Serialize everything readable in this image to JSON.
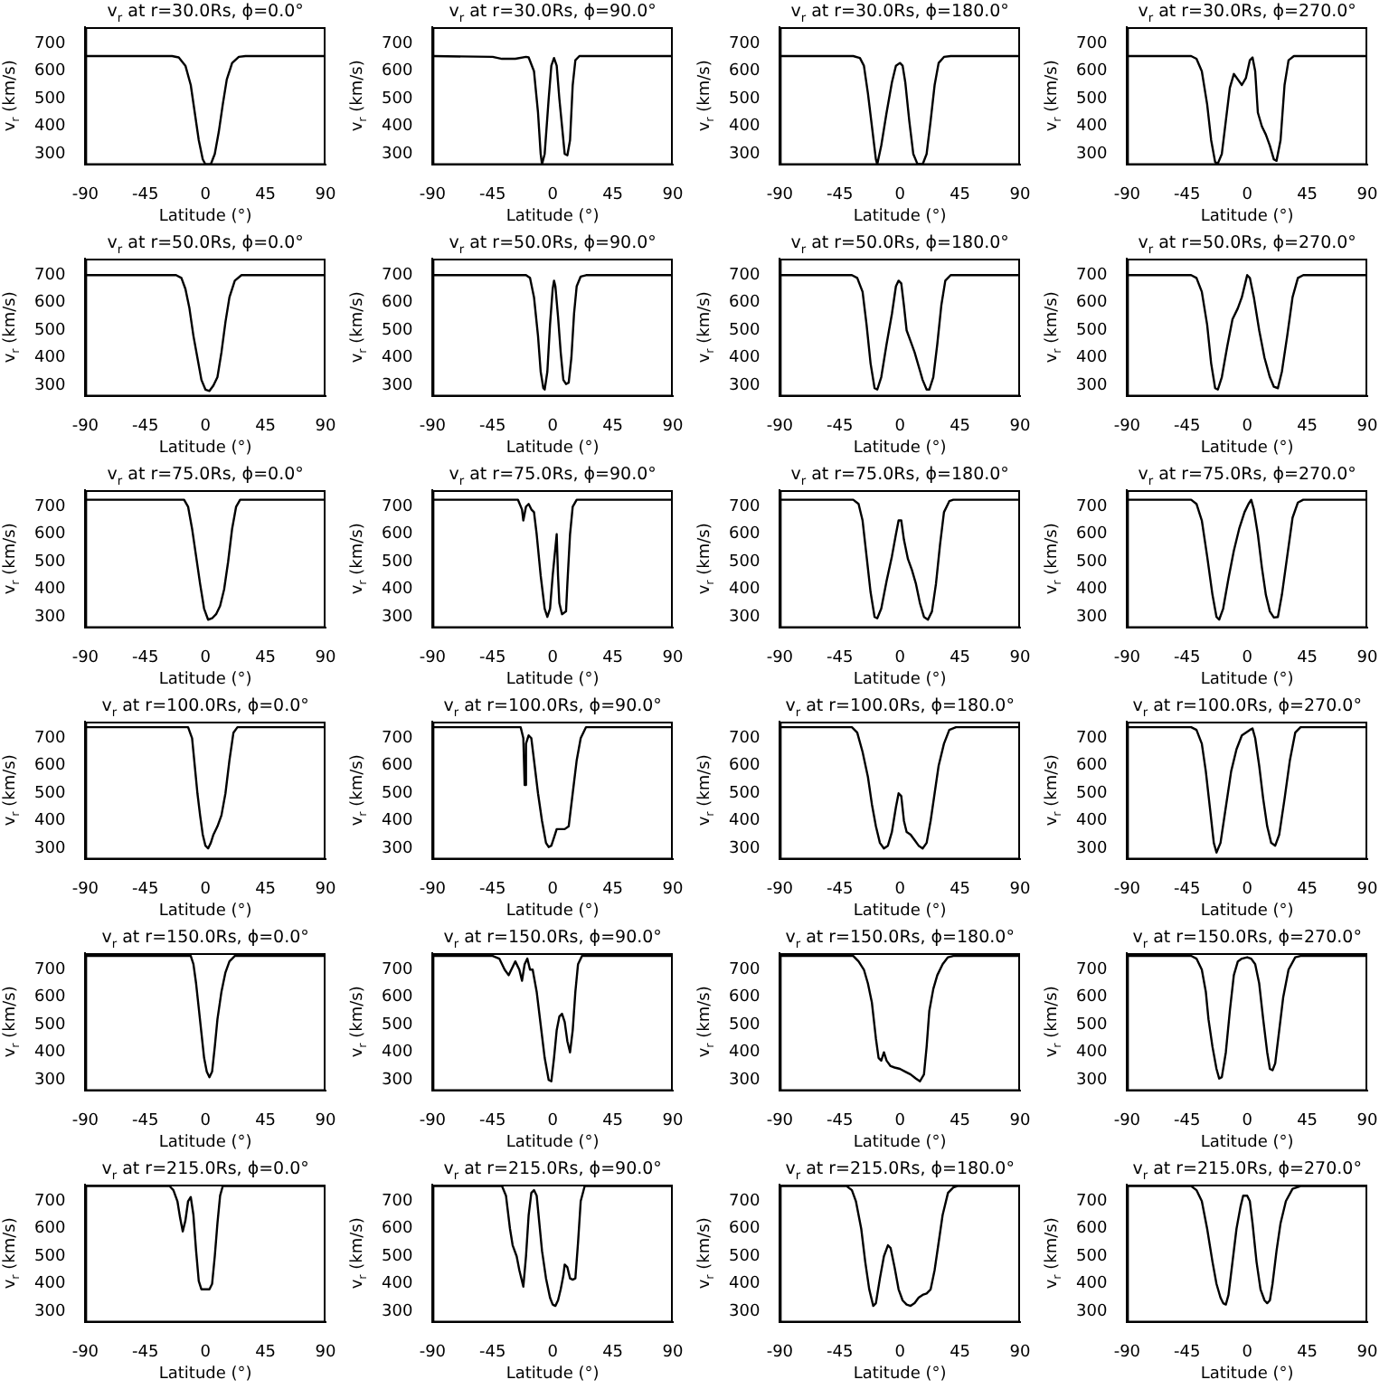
{
  "chart_data": [
    {
      "type": "line",
      "title": "v$_{r}$ at r=30.0Rs, ϕ=0.0°",
      "xlabel": "Latitude (°)",
      "ylabel": "v$_{r}$ (km/s)",
      "color": "#000000",
      "xlim": [
        -90,
        90
      ],
      "xticks": [
        -90,
        -45,
        0,
        45,
        90
      ],
      "ylim": [
        260,
        760
      ],
      "yticks": [
        300,
        400,
        500,
        600,
        700
      ],
      "x": [
        -90,
        -25,
        -20,
        -15,
        -11,
        -8,
        -5,
        -2,
        0,
        4,
        7,
        10,
        13,
        16,
        20,
        25,
        30,
        90
      ],
      "values": [
        655,
        655,
        650,
        620,
        550,
        450,
        350,
        280,
        262,
        262,
        300,
        380,
        480,
        570,
        630,
        652,
        655,
        655
      ]
    },
    {
      "type": "line",
      "title": "v$_{r}$ at r=30.0Rs, ϕ=90.0°",
      "xlabel": "Latitude (°)",
      "ylabel": "v$_{r}$ (km/s)",
      "color": "#000000",
      "xlim": [
        -90,
        90
      ],
      "xticks": [
        -90,
        -45,
        0,
        45,
        90
      ],
      "ylim": [
        260,
        760
      ],
      "yticks": [
        300,
        400,
        500,
        600,
        700
      ],
      "x": [
        -90,
        -45,
        -38,
        -28,
        -20,
        -18,
        -14,
        -11,
        -9,
        -8,
        -6,
        -3,
        -1,
        1,
        3,
        5,
        7,
        9,
        11,
        13,
        15,
        17,
        20,
        90
      ],
      "values": [
        655,
        652,
        645,
        645,
        652,
        650,
        600,
        450,
        300,
        262,
        300,
        500,
        620,
        648,
        620,
        500,
        400,
        300,
        295,
        350,
        550,
        640,
        655,
        655
      ]
    },
    {
      "type": "line",
      "title": "v$_{r}$ at r=30.0Rs, ϕ=180.0°",
      "xlabel": "Latitude (°)",
      "ylabel": "v$_{r}$ (km/s)",
      "color": "#000000",
      "xlim": [
        -90,
        90
      ],
      "xticks": [
        -90,
        -45,
        0,
        45,
        90
      ],
      "ylim": [
        260,
        760
      ],
      "yticks": [
        300,
        400,
        500,
        600,
        700
      ],
      "x": [
        -90,
        -35,
        -30,
        -27,
        -24,
        -21,
        -18,
        -17,
        -14,
        -10,
        -6,
        -3,
        0,
        2,
        4,
        7,
        10,
        13,
        17,
        20,
        23,
        26,
        29,
        33,
        38,
        90
      ],
      "values": [
        655,
        655,
        648,
        620,
        520,
        400,
        280,
        262,
        330,
        450,
        560,
        620,
        630,
        620,
        560,
        420,
        300,
        265,
        262,
        300,
        420,
        550,
        630,
        652,
        655,
        655
      ]
    },
    {
      "type": "line",
      "title": "v$_{r}$ at r=30.0Rs, ϕ=270.0°",
      "xlabel": "Latitude (°)",
      "ylabel": "v$_{r}$ (km/s)",
      "color": "#000000",
      "xlim": [
        -90,
        90
      ],
      "xticks": [
        -90,
        -45,
        0,
        45,
        90
      ],
      "ylim": [
        260,
        760
      ],
      "yticks": [
        300,
        400,
        500,
        600,
        700
      ],
      "x": [
        -90,
        -42,
        -38,
        -34,
        -30,
        -27,
        -24,
        -22,
        -19,
        -16,
        -13,
        -10,
        -7,
        -4,
        -1,
        2,
        4,
        6,
        8,
        11,
        14,
        17,
        20,
        22,
        25,
        28,
        31,
        35,
        90
      ],
      "values": [
        655,
        655,
        645,
        600,
        480,
        350,
        270,
        265,
        300,
        420,
        540,
        590,
        570,
        550,
        575,
        640,
        650,
        600,
        450,
        400,
        370,
        330,
        280,
        275,
        350,
        550,
        640,
        655,
        655
      ]
    },
    {
      "type": "line",
      "title": "v$_{r}$ at r=50.0Rs, ϕ=0.0°",
      "xlabel": "Latitude (°)",
      "ylabel": "v$_{r}$ (km/s)",
      "color": "#000000",
      "xlim": [
        -90,
        90
      ],
      "xticks": [
        -90,
        -45,
        0,
        45,
        90
      ],
      "ylim": [
        260,
        760
      ],
      "yticks": [
        300,
        400,
        500,
        600,
        700
      ],
      "x": [
        -90,
        -22,
        -18,
        -15,
        -12,
        -9,
        -6,
        -3,
        0,
        3,
        6,
        9,
        12,
        15,
        18,
        22,
        27,
        90
      ],
      "values": [
        700,
        700,
        690,
        650,
        580,
        480,
        400,
        320,
        285,
        280,
        300,
        330,
        420,
        530,
        620,
        680,
        700,
        700
      ]
    },
    {
      "type": "line",
      "title": "v$_{r}$ at r=50.0Rs, ϕ=90.0°",
      "xlabel": "Latitude (°)",
      "ylabel": "v$_{r}$ (km/s)",
      "color": "#000000",
      "xlim": [
        -90,
        90
      ],
      "xticks": [
        -90,
        -45,
        0,
        45,
        90
      ],
      "ylim": [
        260,
        760
      ],
      "yticks": [
        300,
        400,
        500,
        600,
        700
      ],
      "x": [
        -90,
        -20,
        -17,
        -14,
        -11,
        -9,
        -7,
        -6,
        -4,
        -2,
        0,
        1,
        2,
        4,
        6,
        8,
        10,
        12,
        14,
        16,
        18,
        21,
        25,
        90
      ],
      "values": [
        700,
        700,
        690,
        620,
        480,
        350,
        290,
        285,
        350,
        520,
        650,
        680,
        660,
        550,
        420,
        320,
        305,
        310,
        400,
        560,
        660,
        695,
        700,
        700
      ]
    },
    {
      "type": "line",
      "title": "v$_{r}$ at r=50.0Rs, ϕ=180.0°",
      "xlabel": "Latitude (°)",
      "ylabel": "v$_{r}$ (km/s)",
      "color": "#000000",
      "xlim": [
        -90,
        90
      ],
      "xticks": [
        -90,
        -45,
        0,
        45,
        90
      ],
      "ylim": [
        260,
        760
      ],
      "yticks": [
        300,
        400,
        500,
        600,
        700
      ],
      "x": [
        -90,
        -36,
        -32,
        -28,
        -25,
        -22,
        -19,
        -17,
        -14,
        -10,
        -6,
        -3,
        -1,
        1,
        3,
        5,
        8,
        11,
        14,
        17,
        20,
        22,
        25,
        28,
        31,
        34,
        38,
        90
      ],
      "values": [
        700,
        700,
        690,
        640,
        520,
        380,
        290,
        285,
        330,
        450,
        560,
        660,
        680,
        670,
        590,
        500,
        460,
        420,
        370,
        320,
        285,
        285,
        330,
        450,
        590,
        680,
        700,
        700
      ]
    },
    {
      "type": "line",
      "title": "v$_{r}$ at r=50.0Rs, ϕ=270.0°",
      "xlabel": "Latitude (°)",
      "ylabel": "v$_{r}$ (km/s)",
      "color": "#000000",
      "xlim": [
        -90,
        90
      ],
      "xticks": [
        -90,
        -45,
        0,
        45,
        90
      ],
      "ylim": [
        260,
        760
      ],
      "yticks": [
        300,
        400,
        500,
        600,
        700
      ],
      "x": [
        -90,
        -42,
        -38,
        -34,
        -30,
        -27,
        -24,
        -22,
        -19,
        -15,
        -11,
        -7,
        -4,
        -1,
        0,
        2,
        5,
        9,
        13,
        17,
        20,
        23,
        26,
        30,
        34,
        38,
        42,
        90
      ],
      "values": [
        700,
        700,
        690,
        640,
        520,
        380,
        290,
        285,
        330,
        440,
        540,
        580,
        620,
        680,
        700,
        690,
        620,
        500,
        400,
        330,
        295,
        290,
        350,
        480,
        620,
        690,
        700,
        700
      ]
    },
    {
      "type": "line",
      "title": "v$_{r}$ at r=75.0Rs, ϕ=0.0°",
      "xlabel": "Latitude (°)",
      "ylabel": "v$_{r}$ (km/s)",
      "color": "#000000",
      "xlim": [
        -90,
        90
      ],
      "xticks": [
        -90,
        -45,
        0,
        45,
        90
      ],
      "ylim": [
        260,
        760
      ],
      "yticks": [
        300,
        400,
        500,
        600,
        700
      ],
      "x": [
        -90,
        -16,
        -13,
        -10,
        -7,
        -4,
        -1,
        2,
        5,
        8,
        11,
        14,
        17,
        20,
        23,
        26,
        90
      ],
      "values": [
        725,
        725,
        700,
        620,
        520,
        420,
        330,
        290,
        295,
        310,
        340,
        400,
        500,
        620,
        700,
        725,
        725
      ]
    },
    {
      "type": "line",
      "title": "v$_{r}$ at r=75.0Rs, ϕ=90.0°",
      "xlabel": "Latitude (°)",
      "ylabel": "v$_{r}$ (km/s)",
      "color": "#000000",
      "xlim": [
        -90,
        90
      ],
      "xticks": [
        -90,
        -45,
        0,
        45,
        90
      ],
      "ylim": [
        260,
        760
      ],
      "yticks": [
        300,
        400,
        500,
        600,
        700
      ],
      "x": [
        -90,
        -26,
        -23,
        -22,
        -20,
        -18,
        -16,
        -14,
        -12,
        -9,
        -6,
        -4,
        -2,
        0,
        1,
        3,
        4,
        5,
        7,
        10,
        11,
        13,
        15,
        18,
        90
      ],
      "values": [
        725,
        725,
        690,
        650,
        700,
        710,
        690,
        680,
        600,
        450,
        330,
        300,
        330,
        450,
        500,
        600,
        450,
        350,
        310,
        320,
        420,
        600,
        700,
        725,
        725
      ]
    },
    {
      "type": "line",
      "title": "v$_{r}$ at r=75.0Rs, ϕ=180.0°",
      "xlabel": "Latitude (°)",
      "ylabel": "v$_{r}$ (km/s)",
      "color": "#000000",
      "xlim": [
        -90,
        90
      ],
      "xticks": [
        -90,
        -45,
        0,
        45,
        90
      ],
      "ylim": [
        260,
        760
      ],
      "yticks": [
        300,
        400,
        500,
        600,
        700
      ],
      "x": [
        -90,
        -35,
        -31,
        -28,
        -25,
        -22,
        -19,
        -17,
        -14,
        -10,
        -6,
        -3,
        -1,
        1,
        3,
        6,
        9,
        12,
        15,
        18,
        21,
        24,
        27,
        30,
        33,
        37,
        40,
        90
      ],
      "values": [
        725,
        725,
        710,
        650,
        520,
        390,
        300,
        295,
        330,
        430,
        520,
        600,
        650,
        650,
        580,
        510,
        470,
        420,
        350,
        300,
        290,
        320,
        420,
        560,
        680,
        720,
        725,
        725
      ]
    },
    {
      "type": "line",
      "title": "v$_{r}$ at r=75.0Rs, ϕ=270.0°",
      "xlabel": "Latitude (°)",
      "ylabel": "v$_{r}$ (km/s)",
      "color": "#000000",
      "xlim": [
        -90,
        90
      ],
      "xticks": [
        -90,
        -45,
        0,
        45,
        90
      ],
      "ylim": [
        260,
        760
      ],
      "yticks": [
        300,
        400,
        500,
        600,
        700
      ],
      "x": [
        -90,
        -42,
        -38,
        -34,
        -30,
        -26,
        -23,
        -21,
        -18,
        -14,
        -10,
        -6,
        -2,
        1,
        3,
        5,
        8,
        11,
        14,
        17,
        20,
        23,
        26,
        30,
        34,
        38,
        42,
        90
      ],
      "values": [
        725,
        725,
        710,
        650,
        520,
        380,
        300,
        290,
        330,
        440,
        540,
        620,
        680,
        710,
        725,
        690,
        600,
        480,
        380,
        320,
        298,
        300,
        380,
        520,
        660,
        715,
        725,
        725
      ]
    },
    {
      "type": "line",
      "title": "v$_{r}$ at r=100.0Rs, ϕ=0.0°",
      "xlabel": "Latitude (°)",
      "ylabel": "v$_{r}$ (km/s)",
      "color": "#000000",
      "xlim": [
        -90,
        90
      ],
      "xticks": [
        -90,
        -45,
        0,
        45,
        90
      ],
      "ylim": [
        260,
        760
      ],
      "yticks": [
        300,
        400,
        500,
        600,
        700
      ],
      "x": [
        -90,
        -13,
        -10,
        -8,
        -6,
        -4,
        -2,
        0,
        2,
        4,
        6,
        9,
        12,
        15,
        18,
        21,
        24,
        90
      ],
      "values": [
        740,
        740,
        700,
        600,
        500,
        420,
        350,
        310,
        300,
        320,
        350,
        380,
        420,
        500,
        620,
        720,
        740,
        740
      ]
    },
    {
      "type": "line",
      "title": "v$_{r}$ at r=100.0Rs, ϕ=90.0°",
      "xlabel": "Latitude (°)",
      "ylabel": "v$_{r}$ (km/s)",
      "color": "#000000",
      "xlim": [
        -90,
        90
      ],
      "xticks": [
        -90,
        -45,
        0,
        45,
        90
      ],
      "ylim": [
        260,
        760
      ],
      "yticks": [
        300,
        400,
        500,
        600,
        700
      ],
      "x": [
        -90,
        -24,
        -22,
        -21,
        -20,
        -18,
        -16,
        -14,
        -11,
        -8,
        -5,
        -3,
        -1,
        1,
        3,
        6,
        9,
        12,
        15,
        18,
        21,
        25,
        90
      ],
      "values": [
        740,
        740,
        700,
        530,
        680,
        710,
        700,
        620,
        500,
        400,
        320,
        305,
        310,
        340,
        370,
        370,
        370,
        380,
        500,
        620,
        700,
        740,
        740
      ]
    },
    {
      "type": "line",
      "title": "v$_{r}$ at r=100.0Rs, ϕ=180.0°",
      "xlabel": "Latitude (°)",
      "ylabel": "v$_{r}$ (km/s)",
      "color": "#000000",
      "xlim": [
        -90,
        90
      ],
      "xticks": [
        -90,
        -45,
        0,
        45,
        90
      ],
      "ylim": [
        260,
        760
      ],
      "yticks": [
        300,
        400,
        500,
        600,
        700
      ],
      "x": [
        -90,
        -36,
        -32,
        -28,
        -24,
        -21,
        -18,
        -15,
        -12,
        -9,
        -6,
        -3,
        -1,
        1,
        3,
        5,
        8,
        11,
        14,
        17,
        20,
        23,
        26,
        29,
        33,
        37,
        42,
        90
      ],
      "values": [
        740,
        740,
        720,
        650,
        560,
        460,
        380,
        320,
        300,
        310,
        360,
        450,
        500,
        490,
        400,
        360,
        350,
        330,
        310,
        300,
        320,
        400,
        500,
        600,
        680,
        730,
        740,
        740
      ]
    },
    {
      "type": "line",
      "title": "v$_{r}$ at r=100.0Rs, ϕ=270.0°",
      "xlabel": "Latitude (°)",
      "ylabel": "v$_{r}$ (km/s)",
      "color": "#000000",
      "xlim": [
        -90,
        90
      ],
      "xticks": [
        -90,
        -45,
        0,
        45,
        90
      ],
      "ylim": [
        260,
        760
      ],
      "yticks": [
        300,
        400,
        500,
        600,
        700
      ],
      "x": [
        -90,
        -42,
        -38,
        -34,
        -31,
        -28,
        -25,
        -23,
        -20,
        -16,
        -12,
        -8,
        -4,
        -1,
        2,
        4,
        6,
        9,
        12,
        15,
        18,
        21,
        24,
        28,
        32,
        36,
        40,
        90
      ],
      "values": [
        740,
        740,
        730,
        680,
        580,
        450,
        320,
        285,
        320,
        450,
        580,
        660,
        710,
        720,
        730,
        735,
        700,
        600,
        480,
        380,
        320,
        310,
        350,
        480,
        620,
        720,
        740,
        740
      ]
    },
    {
      "type": "line",
      "title": "v$_{r}$ at r=150.0Rs, ϕ=0.0°",
      "xlabel": "Latitude (°)",
      "ylabel": "v$_{r}$ (km/s)",
      "color": "#000000",
      "xlim": [
        -90,
        90
      ],
      "xticks": [
        -90,
        -45,
        0,
        45,
        90
      ],
      "ylim": [
        260,
        760
      ],
      "yticks": [
        300,
        400,
        500,
        600,
        700
      ],
      "x": [
        -90,
        -11,
        -9,
        -7,
        -5,
        -3,
        -1,
        1,
        3,
        5,
        7,
        9,
        12,
        15,
        18,
        22,
        90
      ],
      "values": [
        750,
        750,
        720,
        650,
        560,
        470,
        380,
        330,
        310,
        330,
        420,
        520,
        620,
        690,
        730,
        750,
        750
      ]
    },
    {
      "type": "line",
      "title": "v$_{r}$ at r=150.0Rs, ϕ=90.0°",
      "xlabel": "Latitude (°)",
      "ylabel": "v$_{r}$ (km/s)",
      "color": "#000000",
      "xlim": [
        -90,
        90
      ],
      "xticks": [
        -90,
        -45,
        0,
        45,
        90
      ],
      "ylim": [
        260,
        760
      ],
      "yticks": [
        300,
        400,
        500,
        600,
        700
      ],
      "x": [
        -90,
        -45,
        -40,
        -36,
        -33,
        -30,
        -28,
        -25,
        -23,
        -21,
        -19,
        -17,
        -15,
        -12,
        -9,
        -6,
        -3,
        -1,
        1,
        3,
        5,
        7,
        9,
        11,
        13,
        15,
        17,
        19,
        22,
        90
      ],
      "values": [
        750,
        750,
        740,
        700,
        680,
        710,
        730,
        700,
        660,
        720,
        740,
        700,
        700,
        620,
        500,
        380,
        300,
        295,
        380,
        480,
        530,
        540,
        510,
        440,
        400,
        480,
        620,
        720,
        750,
        750
      ]
    },
    {
      "type": "line",
      "title": "v$_{r}$ at r=150.0Rs, ϕ=180.0°",
      "xlabel": "Latitude (°)",
      "ylabel": "v$_{r}$ (km/s)",
      "color": "#000000",
      "xlim": [
        -90,
        90
      ],
      "xticks": [
        -90,
        -45,
        0,
        45,
        90
      ],
      "ylim": [
        260,
        760
      ],
      "yticks": [
        300,
        400,
        500,
        600,
        700
      ],
      "x": [
        -90,
        -35,
        -31,
        -27,
        -24,
        -21,
        -18,
        -16,
        -14,
        -12,
        -10,
        -7,
        -4,
        0,
        4,
        8,
        12,
        15,
        18,
        20,
        22,
        25,
        28,
        32,
        36,
        40,
        90
      ],
      "values": [
        750,
        750,
        730,
        700,
        650,
        580,
        450,
        380,
        370,
        400,
        370,
        350,
        345,
        340,
        330,
        320,
        305,
        295,
        320,
        420,
        550,
        630,
        680,
        720,
        745,
        750,
        750
      ]
    },
    {
      "type": "line",
      "title": "v$_{r}$ at r=150.0Rs, ϕ=270.0°",
      "xlabel": "Latitude (°)",
      "ylabel": "v$_{r}$ (km/s)",
      "color": "#000000",
      "xlim": [
        -90,
        90
      ],
      "xticks": [
        -90,
        -45,
        0,
        45,
        90
      ],
      "ylim": [
        260,
        760
      ],
      "yticks": [
        300,
        400,
        500,
        600,
        700
      ],
      "x": [
        -90,
        -42,
        -38,
        -34,
        -31,
        -29,
        -26,
        -23,
        -21,
        -19,
        -16,
        -13,
        -10,
        -7,
        -4,
        0,
        3,
        6,
        9,
        12,
        15,
        17,
        19,
        21,
        24,
        27,
        31,
        36,
        40,
        90
      ],
      "values": [
        750,
        750,
        740,
        700,
        620,
        520,
        420,
        340,
        305,
        310,
        400,
        550,
        680,
        730,
        740,
        745,
        740,
        720,
        650,
        520,
        400,
        340,
        335,
        360,
        480,
        600,
        700,
        745,
        750,
        750
      ]
    },
    {
      "type": "line",
      "title": "v$_{r}$ at r=215.0Rs, ϕ=0.0°",
      "xlabel": "Latitude (°)",
      "ylabel": "v$_{r}$ (km/s)",
      "color": "#000000",
      "xlim": [
        -90,
        90
      ],
      "xticks": [
        -90,
        -45,
        0,
        45,
        90
      ],
      "ylim": [
        260,
        760
      ],
      "yticks": [
        300,
        400,
        500,
        600,
        700
      ],
      "x": [
        -90,
        -27,
        -24,
        -21,
        -19,
        -17,
        -15,
        -13,
        -11,
        -9,
        -7,
        -5,
        -3,
        0,
        3,
        5,
        7,
        9,
        11,
        13,
        90
      ],
      "values": [
        755,
        755,
        740,
        700,
        640,
        590,
        630,
        700,
        715,
        650,
        520,
        410,
        380,
        380,
        380,
        400,
        500,
        620,
        720,
        755,
        755
      ]
    },
    {
      "type": "line",
      "title": "v$_{r}$ at r=215.0Rs, ϕ=90.0°",
      "xlabel": "Latitude (°)",
      "ylabel": "v$_{r}$ (km/s)",
      "color": "#000000",
      "xlim": [
        -90,
        90
      ],
      "xticks": [
        -90,
        -45,
        0,
        45,
        90
      ],
      "ylim": [
        260,
        760
      ],
      "yticks": [
        300,
        400,
        500,
        600,
        700
      ],
      "x": [
        -90,
        -38,
        -35,
        -32,
        -30,
        -27,
        -25,
        -22,
        -20,
        -18,
        -16,
        -14,
        -12,
        -10,
        -8,
        -5,
        -2,
        0,
        2,
        4,
        6,
        8,
        9,
        11,
        13,
        15,
        17,
        19,
        21,
        24,
        90
      ],
      "values": [
        755,
        755,
        720,
        600,
        540,
        500,
        450,
        390,
        500,
        650,
        730,
        740,
        720,
        620,
        520,
        420,
        350,
        325,
        320,
        340,
        380,
        430,
        470,
        460,
        420,
        415,
        420,
        550,
        700,
        755,
        755
      ]
    },
    {
      "type": "line",
      "title": "v$_{r}$ at r=215.0Rs, ϕ=180.0°",
      "xlabel": "Latitude (°)",
      "ylabel": "v$_{r}$ (km/s)",
      "color": "#000000",
      "xlim": [
        -90,
        90
      ],
      "xticks": [
        -90,
        -45,
        0,
        45,
        90
      ],
      "ylim": [
        260,
        760
      ],
      "yticks": [
        300,
        400,
        500,
        600,
        700
      ],
      "x": [
        -90,
        -40,
        -36,
        -33,
        -29,
        -26,
        -23,
        -20,
        -18,
        -15,
        -12,
        -9,
        -7,
        -4,
        -1,
        2,
        5,
        8,
        11,
        14,
        17,
        20,
        23,
        26,
        29,
        32,
        36,
        40,
        43,
        90
      ],
      "values": [
        755,
        755,
        740,
        700,
        600,
        480,
        380,
        320,
        330,
        420,
        500,
        540,
        530,
        460,
        380,
        340,
        325,
        320,
        330,
        350,
        360,
        365,
        380,
        450,
        550,
        650,
        730,
        750,
        755,
        755
      ]
    },
    {
      "type": "line",
      "title": "v$_{r}$ at r=215.0Rs, ϕ=270.0°",
      "xlabel": "Latitude (°)",
      "ylabel": "v$_{r}$ (km/s)",
      "color": "#000000",
      "xlim": [
        -90,
        90
      ],
      "xticks": [
        -90,
        -45,
        0,
        45,
        90
      ],
      "ylim": [
        260,
        760
      ],
      "yticks": [
        300,
        400,
        500,
        600,
        700
      ],
      "x": [
        -90,
        -42,
        -38,
        -34,
        -30,
        -26,
        -23,
        -20,
        -18,
        -16,
        -14,
        -11,
        -8,
        -5,
        -3,
        0,
        2,
        4,
        7,
        10,
        13,
        15,
        17,
        19,
        22,
        25,
        29,
        34,
        40,
        90
      ],
      "values": [
        755,
        755,
        740,
        700,
        600,
        480,
        400,
        350,
        330,
        325,
        360,
        480,
        600,
        680,
        720,
        720,
        700,
        620,
        480,
        380,
        340,
        330,
        340,
        400,
        520,
        620,
        700,
        745,
        755,
        755
      ]
    }
  ]
}
